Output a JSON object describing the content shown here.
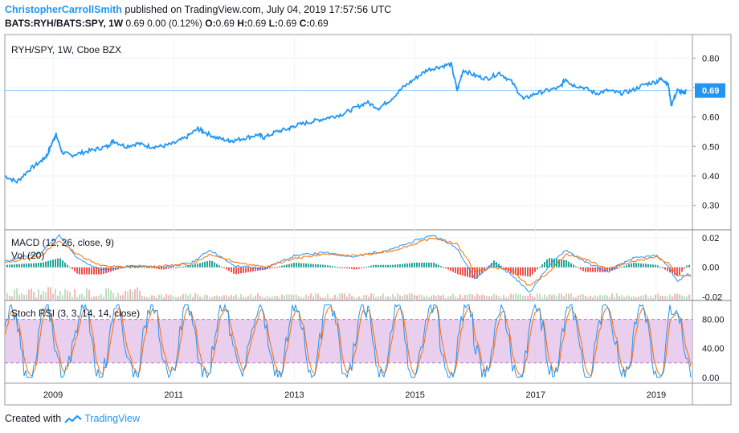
{
  "header": {
    "author": "ChristopherCarrollSmith",
    "published_text": "published on TradingView.com, July 04, 2019 17:57:56 UTC",
    "symbol": "BATS:RYH/BATS:SPY, 1W",
    "last": "0.69",
    "change": "0.00 (0.12%)",
    "o_label": "O:",
    "o_value": "0.69",
    "h_label": "H:",
    "h_value": "0.69",
    "l_label": "L:",
    "l_value": "0.69",
    "c_label": "C:",
    "c_value": "0.69"
  },
  "footer": {
    "created_with": "Created with",
    "brand": "TradingView"
  },
  "colors": {
    "price_line": "#2196f3",
    "macd_line": "#2196f3",
    "signal_line": "#ff6d00",
    "hist_up": "#26a69a",
    "hist_down": "#ef5350",
    "vol_up": "#a5d6a7",
    "vol_down": "#ef9a9a",
    "stoch_k": "#2196f3",
    "stoch_d": "#ff6d00",
    "stoch_band": "#e1bee7",
    "price_badge": "#2196f3"
  },
  "chart_data": [
    {
      "type": "line",
      "title": "RYH/SPY, 1W, Cboe BZX",
      "current_value_label": "0.69",
      "yticks": [
        "0.80",
        "0.70",
        "0.60",
        "0.50",
        "0.40",
        "0.30"
      ],
      "ylim": [
        0.22,
        0.88
      ],
      "x_ticks": [
        "2009",
        "2011",
        "2013",
        "2015",
        "2017",
        "2019"
      ],
      "x_tick_years": [
        2009,
        2011,
        2013,
        2015,
        2017,
        2019
      ],
      "xlim": [
        2008.2,
        2019.6
      ],
      "series": [
        {
          "x": [
            2008.2,
            2008.4,
            2008.6,
            2008.8,
            2008.9,
            2009.0,
            2009.05,
            2009.15,
            2009.3,
            2009.5,
            2009.7,
            2009.9,
            2010.0,
            2010.2,
            2010.4,
            2010.6,
            2010.8,
            2011.0,
            2011.2,
            2011.4,
            2011.5,
            2011.7,
            2011.9,
            2012.0,
            2012.2,
            2012.4,
            2012.5,
            2012.7,
            2012.9,
            2013.0,
            2013.2,
            2013.4,
            2013.6,
            2013.8,
            2014.0,
            2014.2,
            2014.4,
            2014.6,
            2014.8,
            2015.0,
            2015.2,
            2015.4,
            2015.6,
            2015.7,
            2015.8,
            2016.0,
            2016.2,
            2016.4,
            2016.6,
            2016.8,
            2017.0,
            2017.2,
            2017.4,
            2017.5,
            2017.6,
            2017.8,
            2018.0,
            2018.2,
            2018.4,
            2018.6,
            2018.8,
            2019.0,
            2019.1,
            2019.2,
            2019.25,
            2019.35,
            2019.45,
            2019.5
          ],
          "y": [
            0.4,
            0.38,
            0.42,
            0.45,
            0.47,
            0.52,
            0.54,
            0.48,
            0.47,
            0.48,
            0.49,
            0.5,
            0.52,
            0.5,
            0.51,
            0.5,
            0.5,
            0.51,
            0.53,
            0.56,
            0.55,
            0.53,
            0.52,
            0.52,
            0.53,
            0.54,
            0.53,
            0.55,
            0.56,
            0.57,
            0.58,
            0.59,
            0.6,
            0.61,
            0.63,
            0.65,
            0.63,
            0.66,
            0.7,
            0.73,
            0.76,
            0.77,
            0.78,
            0.69,
            0.76,
            0.74,
            0.73,
            0.75,
            0.72,
            0.66,
            0.68,
            0.69,
            0.7,
            0.73,
            0.71,
            0.7,
            0.68,
            0.69,
            0.68,
            0.69,
            0.71,
            0.72,
            0.73,
            0.71,
            0.64,
            0.69,
            0.68,
            0.69
          ]
        }
      ]
    },
    {
      "type": "line",
      "title": "MACD (12, 26, close, 9)",
      "volume_label": "Vol (20)",
      "yticks": [
        "0.02",
        "0.00",
        "-0.02"
      ],
      "ylim": [
        -0.022,
        0.025
      ],
      "series": [
        {
          "name": "MACD",
          "x": [
            2008.2,
            2008.8,
            2009.1,
            2009.4,
            2009.8,
            2010.3,
            2010.8,
            2011.3,
            2011.6,
            2012.0,
            2012.5,
            2013.0,
            2013.5,
            2014.0,
            2014.3,
            2014.6,
            2015.0,
            2015.3,
            2015.7,
            2016.0,
            2016.3,
            2016.6,
            2016.9,
            2017.2,
            2017.5,
            2017.8,
            2018.2,
            2018.6,
            2019.0,
            2019.2,
            2019.35,
            2019.5
          ],
          "y": [
            0.004,
            0.01,
            0.022,
            0.006,
            -0.002,
            0.001,
            0.0,
            0.003,
            0.012,
            0.001,
            -0.001,
            0.008,
            0.01,
            0.007,
            0.01,
            0.012,
            0.018,
            0.022,
            0.013,
            -0.008,
            0.003,
            -0.005,
            -0.017,
            0.0,
            0.012,
            0.004,
            -0.003,
            0.006,
            0.008,
            0.001,
            -0.01,
            -0.005
          ]
        },
        {
          "name": "Signal",
          "x": [
            2008.2,
            2008.8,
            2009.1,
            2009.4,
            2009.8,
            2010.3,
            2010.8,
            2011.3,
            2011.6,
            2012.0,
            2012.5,
            2013.0,
            2013.5,
            2014.0,
            2014.3,
            2014.6,
            2015.0,
            2015.3,
            2015.7,
            2016.0,
            2016.3,
            2016.6,
            2016.9,
            2017.2,
            2017.5,
            2017.8,
            2018.2,
            2018.6,
            2019.0,
            2019.2,
            2019.35,
            2019.5
          ],
          "y": [
            0.003,
            0.008,
            0.018,
            0.009,
            0.001,
            0.0,
            0.001,
            0.002,
            0.009,
            0.004,
            0.0,
            0.006,
            0.009,
            0.008,
            0.009,
            0.011,
            0.016,
            0.02,
            0.016,
            -0.003,
            0.0,
            -0.002,
            -0.013,
            -0.004,
            0.009,
            0.006,
            -0.001,
            0.004,
            0.007,
            0.003,
            -0.006,
            -0.006
          ]
        }
      ]
    },
    {
      "type": "line",
      "title": "Stoch RSI (3, 3, 14, 14, close)",
      "yticks": [
        "80.00",
        "40.00",
        "0.00"
      ],
      "ylim": [
        -8,
        105
      ],
      "band": [
        20,
        80
      ],
      "series": [
        {
          "name": "K",
          "x": [],
          "y": []
        },
        {
          "name": "D",
          "x": [],
          "y": []
        }
      ]
    }
  ]
}
